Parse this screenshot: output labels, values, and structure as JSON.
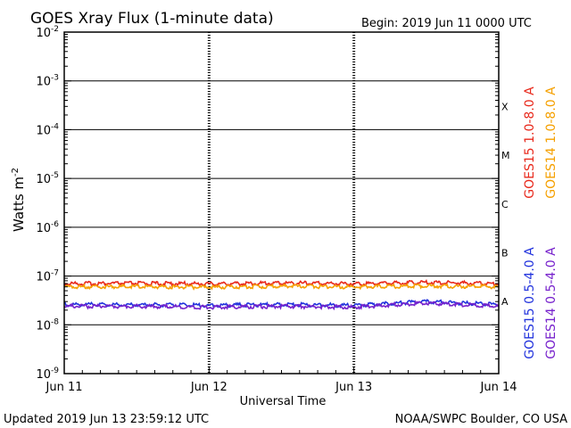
{
  "header": {
    "title": "GOES Xray Flux (1-minute data)",
    "begin": "Begin:  2019 Jun 11 0000 UTC"
  },
  "footer": {
    "updated": "Updated 2019 Jun 13 23:59:12 UTC",
    "source": "NOAA/SWPC Boulder, CO USA"
  },
  "chart_data": {
    "type": "line",
    "title": "GOES Xray Flux (1-minute data)",
    "xlabel": "Universal Time",
    "ylabel": "Watts m",
    "ylabel_sup": "-2",
    "yscale": "log",
    "ylim": [
      1e-09,
      0.01
    ],
    "y_ticks": [
      {
        "value": 0.01,
        "base": "10",
        "exp": "-2"
      },
      {
        "value": 0.001,
        "base": "10",
        "exp": "-3"
      },
      {
        "value": 0.0001,
        "base": "10",
        "exp": "-4"
      },
      {
        "value": 1e-05,
        "base": "10",
        "exp": "-5"
      },
      {
        "value": 1e-06,
        "base": "10",
        "exp": "-6"
      },
      {
        "value": 1e-07,
        "base": "10",
        "exp": "-7"
      },
      {
        "value": 1e-08,
        "base": "10",
        "exp": "-8"
      },
      {
        "value": 1e-09,
        "base": "10",
        "exp": "-9"
      }
    ],
    "x_ticks": [
      "Jun 11",
      "Jun 12",
      "Jun 13",
      "Jun 14"
    ],
    "xlim": [
      "2019-06-11 00:00",
      "2019-06-14 00:00"
    ],
    "flare_classes": [
      {
        "label": "X",
        "value": 0.0003
      },
      {
        "label": "M",
        "value": 3e-05
      },
      {
        "label": "C",
        "value": 3e-06
      },
      {
        "label": "B",
        "value": 3e-07
      },
      {
        "label": "A",
        "value": 3e-08
      }
    ],
    "grid": true,
    "series": [
      {
        "name": "GOES15 1.0-8.0 A",
        "color": "#e8291c",
        "x": [
          "Jun 11",
          "Jun 11.5",
          "Jun 12",
          "Jun 12.5",
          "Jun 13",
          "Jun 13.5",
          "Jun 14"
        ],
        "values": [
          7e-08,
          7.1e-08,
          6.9e-08,
          7.2e-08,
          7e-08,
          7.4e-08,
          7e-08
        ]
      },
      {
        "name": "GOES14 1.0-8.0 A",
        "color": "#f5a000",
        "x": [
          "Jun 11",
          "Jun 11.5",
          "Jun 12",
          "Jun 12.5",
          "Jun 13",
          "Jun 13.5",
          "Jun 14"
        ],
        "values": [
          6e-08,
          6.1e-08,
          5.9e-08,
          6.2e-08,
          6e-08,
          6.3e-08,
          6e-08
        ]
      },
      {
        "name": "GOES15 0.5-4.0 A",
        "color": "#2233dd",
        "x": [
          "Jun 11",
          "Jun 11.5",
          "Jun 12",
          "Jun 12.5",
          "Jun 13",
          "Jun 13.5",
          "Jun 14"
        ],
        "values": [
          2.6e-08,
          2.6e-08,
          2.5e-08,
          2.6e-08,
          2.5e-08,
          3e-08,
          2.6e-08
        ]
      },
      {
        "name": "GOES14 0.5-4.0 A",
        "color": "#7722cc",
        "x": [
          "Jun 11",
          "Jun 11.5",
          "Jun 12",
          "Jun 12.5",
          "Jun 13",
          "Jun 13.5",
          "Jun 14"
        ],
        "values": [
          2.4e-08,
          2.4e-08,
          2.3e-08,
          2.4e-08,
          2.3e-08,
          2.8e-08,
          2.4e-08
        ]
      }
    ]
  }
}
